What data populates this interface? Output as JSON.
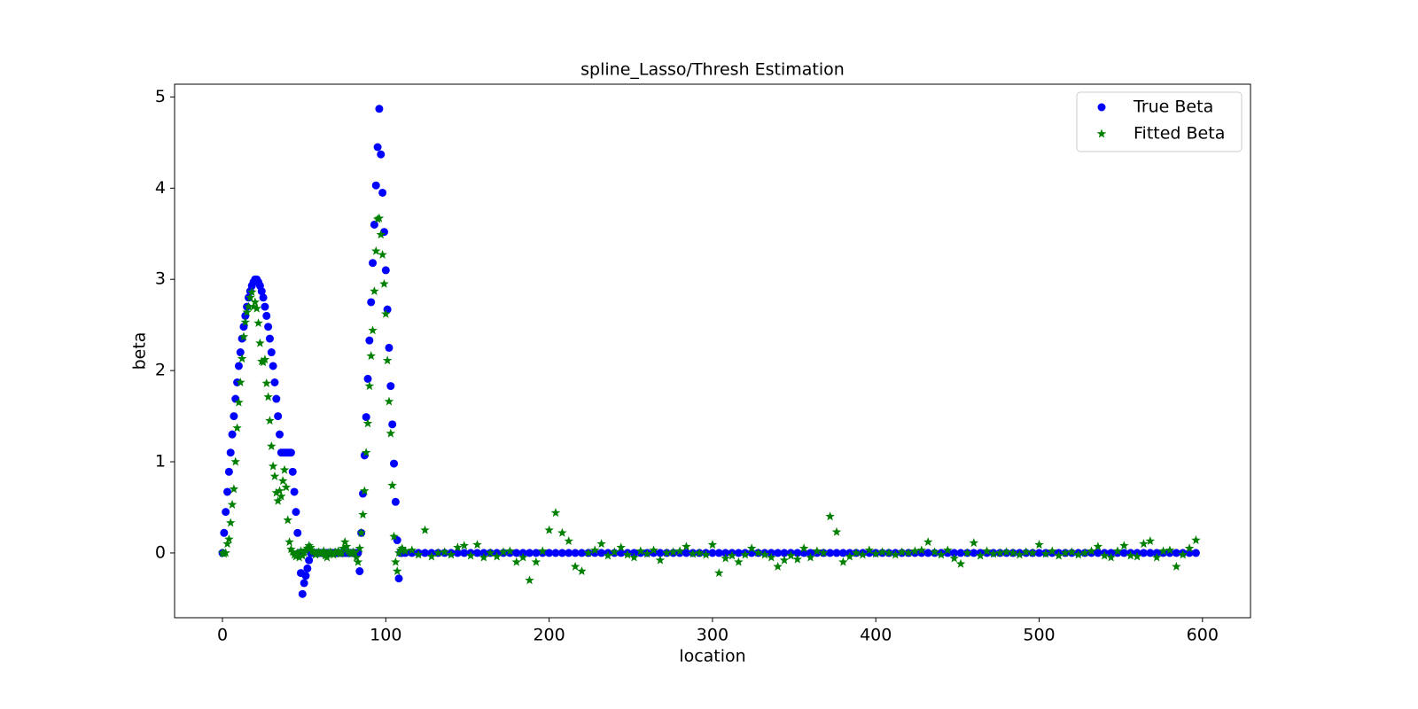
{
  "chart_data": {
    "type": "scatter",
    "title": "spline_Lasso/Thresh Estimation",
    "x_label": "location",
    "y_label": "beta",
    "xlim": [
      -29.3,
      629.4
    ],
    "ylim": [
      -0.71,
      5.14
    ],
    "xticks": [
      0,
      100,
      200,
      300,
      400,
      500,
      600
    ],
    "yticks": [
      0,
      1,
      2,
      3,
      4,
      5
    ],
    "legend": "upper right",
    "grid": false,
    "x": [
      0,
      1,
      2,
      3,
      4,
      5,
      6,
      7,
      8,
      9,
      10,
      11,
      12,
      13,
      14,
      15,
      16,
      17,
      18,
      19,
      20,
      21,
      22,
      23,
      24,
      25,
      26,
      27,
      28,
      29,
      30,
      31,
      32,
      33,
      34,
      35,
      36,
      37,
      38,
      39,
      40,
      41,
      42,
      43,
      44,
      45,
      46,
      47,
      48,
      49,
      50,
      51,
      52,
      53,
      54,
      55,
      56,
      57,
      58,
      59,
      60,
      61,
      62,
      63,
      64,
      65,
      66,
      67,
      68,
      69,
      70,
      71,
      72,
      73,
      74,
      75,
      76,
      77,
      78,
      79,
      80,
      81,
      82,
      83,
      84,
      85,
      86,
      87,
      88,
      89,
      90,
      91,
      92,
      93,
      94,
      95,
      96,
      97,
      98,
      99,
      100,
      101,
      102,
      103,
      104,
      105,
      106,
      107,
      108,
      109,
      110,
      112,
      116,
      120,
      124,
      128,
      132,
      136,
      140,
      144,
      148,
      152,
      156,
      160,
      164,
      168,
      172,
      176,
      180,
      184,
      188,
      192,
      196,
      200,
      204,
      208,
      212,
      216,
      220,
      224,
      228,
      232,
      236,
      240,
      244,
      248,
      252,
      256,
      260,
      264,
      268,
      272,
      276,
      280,
      284,
      288,
      292,
      296,
      300,
      304,
      308,
      312,
      316,
      320,
      324,
      328,
      332,
      336,
      340,
      344,
      348,
      352,
      356,
      360,
      364,
      368,
      372,
      376,
      380,
      384,
      388,
      392,
      396,
      400,
      404,
      408,
      412,
      416,
      420,
      424,
      428,
      432,
      436,
      440,
      444,
      448,
      452,
      456,
      460,
      464,
      468,
      472,
      476,
      480,
      484,
      488,
      492,
      496,
      500,
      504,
      508,
      512,
      516,
      520,
      524,
      528,
      532,
      536,
      540,
      544,
      548,
      552,
      556,
      560,
      564,
      568,
      572,
      576,
      580,
      584,
      588,
      592,
      596
    ],
    "series": [
      {
        "name": "True Beta",
        "color": "#0000ff",
        "marker": "circle",
        "values": [
          0,
          0.22,
          0.45,
          0.67,
          0.89,
          1.1,
          1.3,
          1.5,
          1.69,
          1.87,
          2.05,
          2.2,
          2.35,
          2.48,
          2.6,
          2.7,
          2.8,
          2.87,
          2.93,
          2.97,
          3.0,
          3.0,
          2.97,
          2.93,
          2.87,
          2.8,
          2.7,
          2.6,
          2.48,
          2.35,
          2.2,
          2.05,
          1.87,
          1.69,
          1.5,
          1.3,
          1.1,
          1.1,
          1.1,
          1.1,
          1.1,
          1.1,
          1.1,
          0.89,
          0.67,
          0.45,
          0.22,
          0,
          -0.22,
          -0.45,
          -0.33,
          -0.25,
          -0.17,
          -0.08,
          0,
          0,
          0,
          0,
          0,
          0,
          0,
          0,
          0,
          0,
          0,
          0,
          0,
          0,
          0,
          0,
          0,
          0,
          0,
          0,
          0,
          0,
          0,
          0,
          0,
          0,
          0,
          0,
          0,
          0,
          -0.2,
          0.22,
          0.65,
          1.07,
          1.49,
          1.91,
          2.33,
          2.75,
          3.18,
          3.6,
          4.03,
          4.45,
          4.87,
          4.37,
          3.95,
          3.52,
          3.1,
          2.67,
          2.25,
          1.83,
          1.41,
          0.98,
          0.56,
          0.14,
          -0.28,
          0,
          0,
          0,
          0,
          0,
          0,
          0,
          0,
          0,
          0,
          0,
          0,
          0,
          0,
          0,
          0,
          0,
          0,
          0,
          0,
          0,
          0,
          0,
          0,
          0,
          0,
          0,
          0,
          0,
          0,
          0,
          0,
          0,
          0,
          0,
          0,
          0,
          0,
          0,
          0,
          0,
          0,
          0,
          0,
          0,
          0,
          0,
          0,
          0,
          0,
          0,
          0,
          0,
          0,
          0,
          0,
          0,
          0,
          0,
          0,
          0,
          0,
          0,
          0,
          0,
          0,
          0,
          0,
          0,
          0,
          0,
          0,
          0,
          0,
          0,
          0,
          0,
          0,
          0,
          0,
          0,
          0,
          0,
          0,
          0,
          0,
          0,
          0,
          0,
          0,
          0,
          0,
          0,
          0,
          0,
          0,
          0,
          0,
          0,
          0,
          0,
          0,
          0,
          0,
          0,
          0,
          0,
          0,
          0,
          0,
          0,
          0,
          0,
          0,
          0,
          0,
          0,
          0,
          0,
          0,
          0,
          0,
          0,
          0
        ]
      },
      {
        "name": "Fitted Beta",
        "color": "#008000",
        "marker": "star",
        "values": [
          0,
          -0.01,
          0,
          0.1,
          0.15,
          0.33,
          0.53,
          0.7,
          1.0,
          1.37,
          1.65,
          1.87,
          2.13,
          2.37,
          2.53,
          2.64,
          2.7,
          2.8,
          2.86,
          2.7,
          2.75,
          2.68,
          2.52,
          2.3,
          2.1,
          2.09,
          2.12,
          1.86,
          1.71,
          1.45,
          1.17,
          0.95,
          0.84,
          0.66,
          0.57,
          0.68,
          0.62,
          0.79,
          0.91,
          0.72,
          0.36,
          0.12,
          0.04,
          0.01,
          -0.02,
          -0.04,
          0,
          -0.05,
          0.02,
          -0.03,
          0,
          0.03,
          0.05,
          0.08,
          0.06,
          0.02,
          0.01,
          -0.02,
          0,
          0.01,
          -0.01,
          0,
          0.02,
          -0.03,
          -0.05,
          0,
          0.01,
          0,
          -0.02,
          0.01,
          0,
          0.02,
          -0.01,
          0,
          0.05,
          0.12,
          0.07,
          0.02,
          0,
          -0.01,
          0.01,
          0,
          -0.05,
          -0.1,
          0.05,
          0.22,
          0.42,
          0.68,
          1.1,
          1.42,
          1.83,
          2.16,
          2.44,
          2.87,
          3.31,
          3.66,
          3.67,
          3.49,
          3.27,
          2.95,
          2.62,
          2.11,
          1.66,
          1.31,
          0.74,
          0.18,
          -0.1,
          -0.2,
          0,
          0.03,
          0.05,
          0.02,
          0.03,
          -0.02,
          0.25,
          -0.04,
          0,
          0.01,
          -0.02,
          0.06,
          0.08,
          -0.03,
          0.09,
          -0.05,
          0,
          -0.04,
          0.01,
          0.02,
          -0.1,
          -0.05,
          -0.3,
          -0.1,
          0.02,
          0.25,
          0.44,
          0.22,
          0.13,
          -0.15,
          -0.2,
          0,
          0.03,
          0.1,
          -0.03,
          0.01,
          0.06,
          -0.02,
          -0.05,
          0.02,
          -0.01,
          0.03,
          -0.08,
          0,
          0.01,
          0.02,
          0.07,
          -0.01,
          0,
          -0.02,
          0.09,
          -0.22,
          -0.06,
          -0.03,
          -0.1,
          -0.02,
          0.05,
          0,
          -0.02,
          -0.05,
          -0.15,
          -0.08,
          -0.03,
          -0.07,
          0.05,
          -0.05,
          0.02,
          0,
          0.4,
          0.23,
          -0.1,
          -0.04,
          0,
          -0.02,
          0.03,
          -0.01,
          0.01,
          0,
          -0.02,
          0.01,
          0,
          0.02,
          0.03,
          0.12,
          0.01,
          -0.02,
          0.03,
          -0.06,
          -0.12,
          0,
          0.11,
          -0.03,
          0.02,
          -0.01,
          0,
          0.01,
          0,
          -0.02,
          0.01,
          0,
          0.09,
          -0.01,
          0.02,
          -0.03,
          0,
          0.01,
          -0.02,
          0,
          0.02,
          0.07,
          -0.03,
          -0.05,
          0.02,
          0.08,
          -0.03,
          -0.04,
          0.1,
          0.13,
          -0.05,
          0.02,
          0.03,
          -0.15,
          -0.02,
          0.05,
          0.14
        ]
      }
    ]
  }
}
